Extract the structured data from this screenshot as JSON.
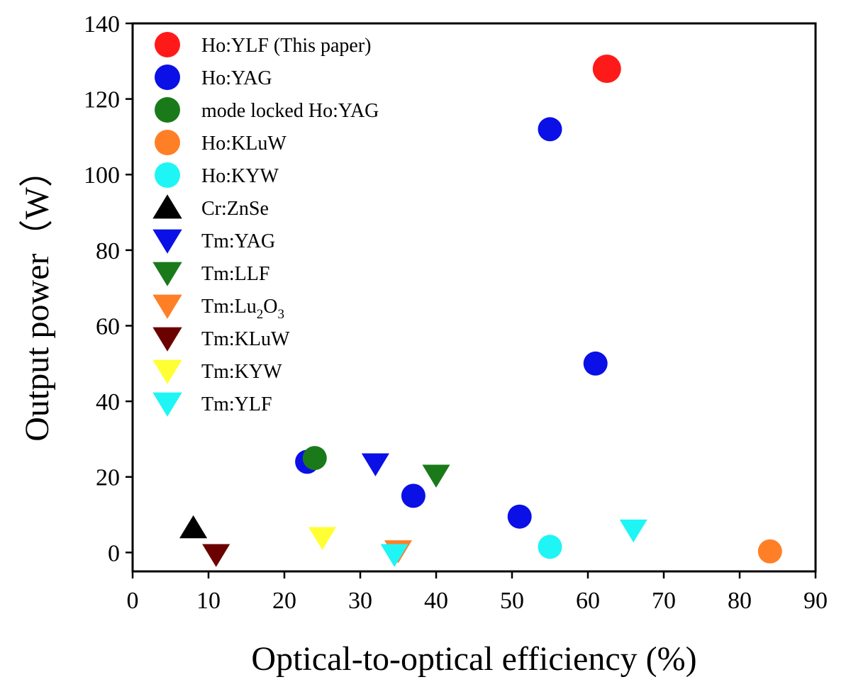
{
  "chart_data": {
    "type": "scatter",
    "xlabel": "Optical-to-optical efficiency (%)",
    "ylabel": "Output power（W）",
    "xlim": [
      0,
      90
    ],
    "ylim": [
      -5,
      140
    ],
    "xticks": [
      0,
      10,
      20,
      30,
      40,
      50,
      60,
      70,
      80,
      90
    ],
    "yticks": [
      0,
      20,
      40,
      60,
      80,
      100,
      120,
      140
    ],
    "grid": false,
    "legend_position": "top-left",
    "series": [
      {
        "name": "Ho:YLF (This paper)",
        "marker": "circle",
        "color": "#ff1a1a",
        "size": "large",
        "points": [
          {
            "x": 62.5,
            "y": 128
          }
        ]
      },
      {
        "name": "Ho:YAG",
        "marker": "circle",
        "color": "#0a10e6",
        "points": [
          {
            "x": 55,
            "y": 112
          },
          {
            "x": 61,
            "y": 50
          },
          {
            "x": 23,
            "y": 24
          },
          {
            "x": 37,
            "y": 15
          },
          {
            "x": 51,
            "y": 9.5
          }
        ]
      },
      {
        "name": "mode locked Ho:YAG",
        "marker": "circle",
        "color": "#1a7a1a",
        "points": [
          {
            "x": 24,
            "y": 25
          }
        ]
      },
      {
        "name": "Ho:KLuW",
        "marker": "circle",
        "color": "#ff7f27",
        "points": [
          {
            "x": 84,
            "y": 0.3
          }
        ]
      },
      {
        "name": "Ho:KYW",
        "marker": "circle",
        "color": "#1ff5f5",
        "points": [
          {
            "x": 55,
            "y": 1.5
          }
        ]
      },
      {
        "name": "Cr:ZnSe",
        "marker": "triangle-up",
        "color": "#000000",
        "points": [
          {
            "x": 8,
            "y": 6.5
          }
        ]
      },
      {
        "name": "Tm:YAG",
        "marker": "triangle-down",
        "color": "#0a10e6",
        "points": [
          {
            "x": 32,
            "y": 23.5
          }
        ]
      },
      {
        "name": "Tm:LLF",
        "marker": "triangle-down",
        "color": "#1a7a1a",
        "points": [
          {
            "x": 40,
            "y": 20.5
          }
        ]
      },
      {
        "name": "Tm:Lu2O3",
        "label_base": "Tm:Lu",
        "label_sub1": "2",
        "label_mid": "O",
        "label_sub2": "3",
        "marker": "triangle-down",
        "color": "#ff7f27",
        "points": [
          {
            "x": 35,
            "y": 0.5
          }
        ]
      },
      {
        "name": "Tm:KLuW",
        "marker": "triangle-down",
        "color": "#6b0000",
        "points": [
          {
            "x": 11,
            "y": -0.5
          }
        ]
      },
      {
        "name": "Tm:KYW",
        "marker": "triangle-down",
        "color": "#ffff33",
        "points": [
          {
            "x": 25,
            "y": 4
          }
        ]
      },
      {
        "name": "Tm:YLF",
        "marker": "triangle-down",
        "color": "#1ff5f5",
        "points": [
          {
            "x": 34.5,
            "y": -0.5
          },
          {
            "x": 66,
            "y": 6
          }
        ]
      }
    ]
  }
}
